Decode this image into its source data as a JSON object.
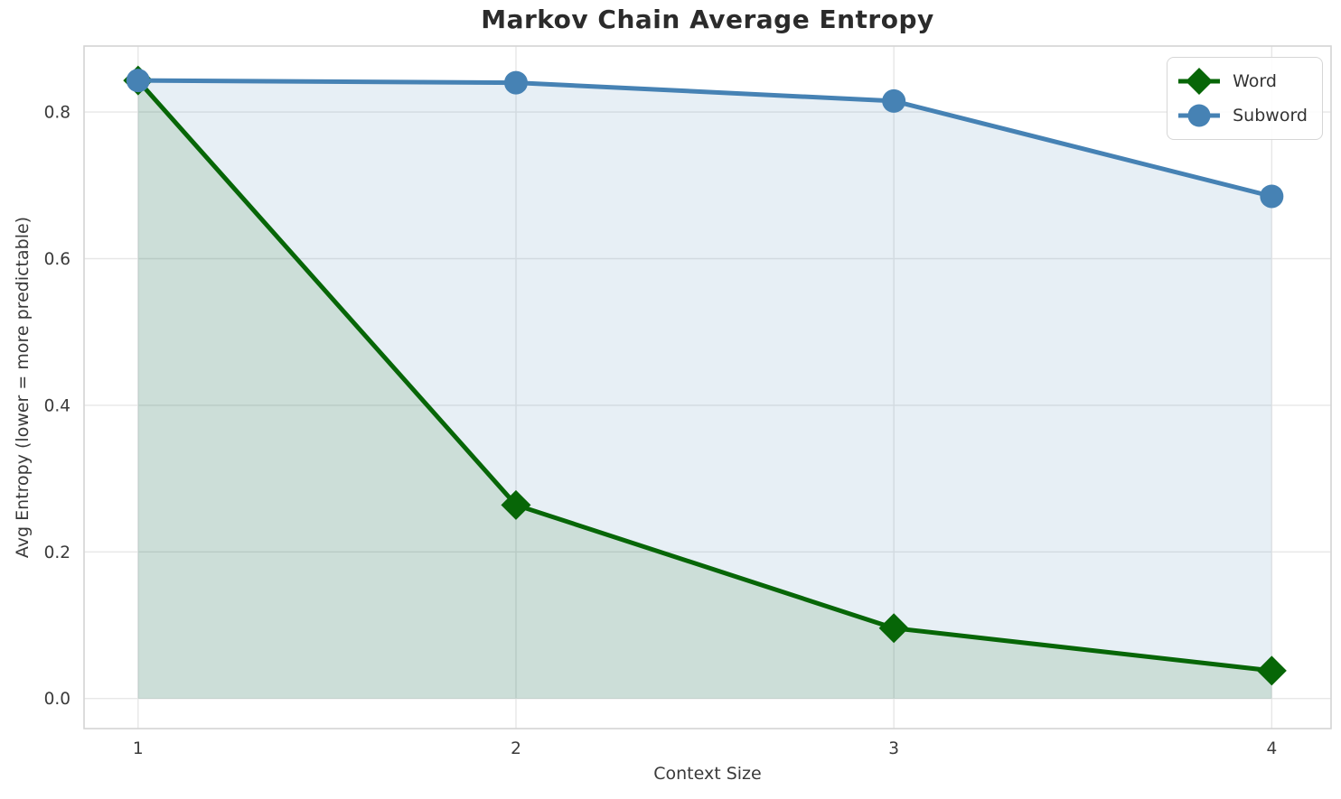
{
  "title": "Markov Chain Average Entropy",
  "chart_data": {
    "type": "line",
    "title": "Markov Chain Average Entropy",
    "xlabel": "Context Size",
    "ylabel": "Avg Entropy (lower = more predictable)",
    "x": [
      1,
      2,
      3,
      4
    ],
    "series": [
      {
        "name": "Word",
        "values": [
          0.843,
          0.264,
          0.096,
          0.038
        ],
        "color": "#076607",
        "marker": "diamond",
        "fill_opacity": 0.12
      },
      {
        "name": "Subword",
        "values": [
          0.843,
          0.84,
          0.815,
          0.685
        ],
        "color": "#4682b4",
        "marker": "circle",
        "fill_opacity": 0.13
      }
    ],
    "area_fill_baseline": 0,
    "xticks": [
      "1",
      "2",
      "3",
      "4"
    ],
    "xtick_values": [
      1,
      2,
      3,
      4
    ],
    "yticks": [
      "0.0",
      "0.2",
      "0.4",
      "0.6",
      "0.8"
    ],
    "ytick_values": [
      0,
      0.2,
      0.4,
      0.6,
      0.8
    ],
    "xlim": [
      0.857,
      4.157
    ],
    "ylim": [
      -0.041,
      0.89
    ],
    "grid": true,
    "legend_position": "upper right",
    "grid_color": "#e7e7e7",
    "spine_color": "#d4d4d4",
    "tick_color": "#3a3a3a"
  },
  "legend": {
    "items": [
      {
        "label": "Word"
      },
      {
        "label": "Subword"
      }
    ]
  }
}
